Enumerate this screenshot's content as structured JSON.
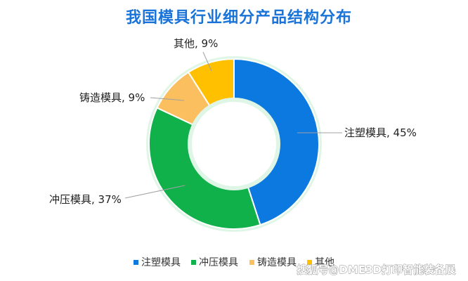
{
  "chart_data": {
    "type": "pie",
    "title": "我国模具行业细分产品结构分布",
    "categories": [
      "注塑模具",
      "冲压模具",
      "铸造模具",
      "其他"
    ],
    "values": [
      45,
      37,
      9,
      9
    ],
    "data_labels": [
      "注塑模具, 45%",
      "冲压模具, 37%",
      "铸造模具, 9%",
      "其他, 9%"
    ],
    "colors": [
      "#0b79df",
      "#10b04b",
      "#fbbf5f",
      "#ffc000"
    ],
    "legend": "bottom",
    "donut": true
  },
  "watermark": "搜狐号@DME3D打印智能装备展"
}
